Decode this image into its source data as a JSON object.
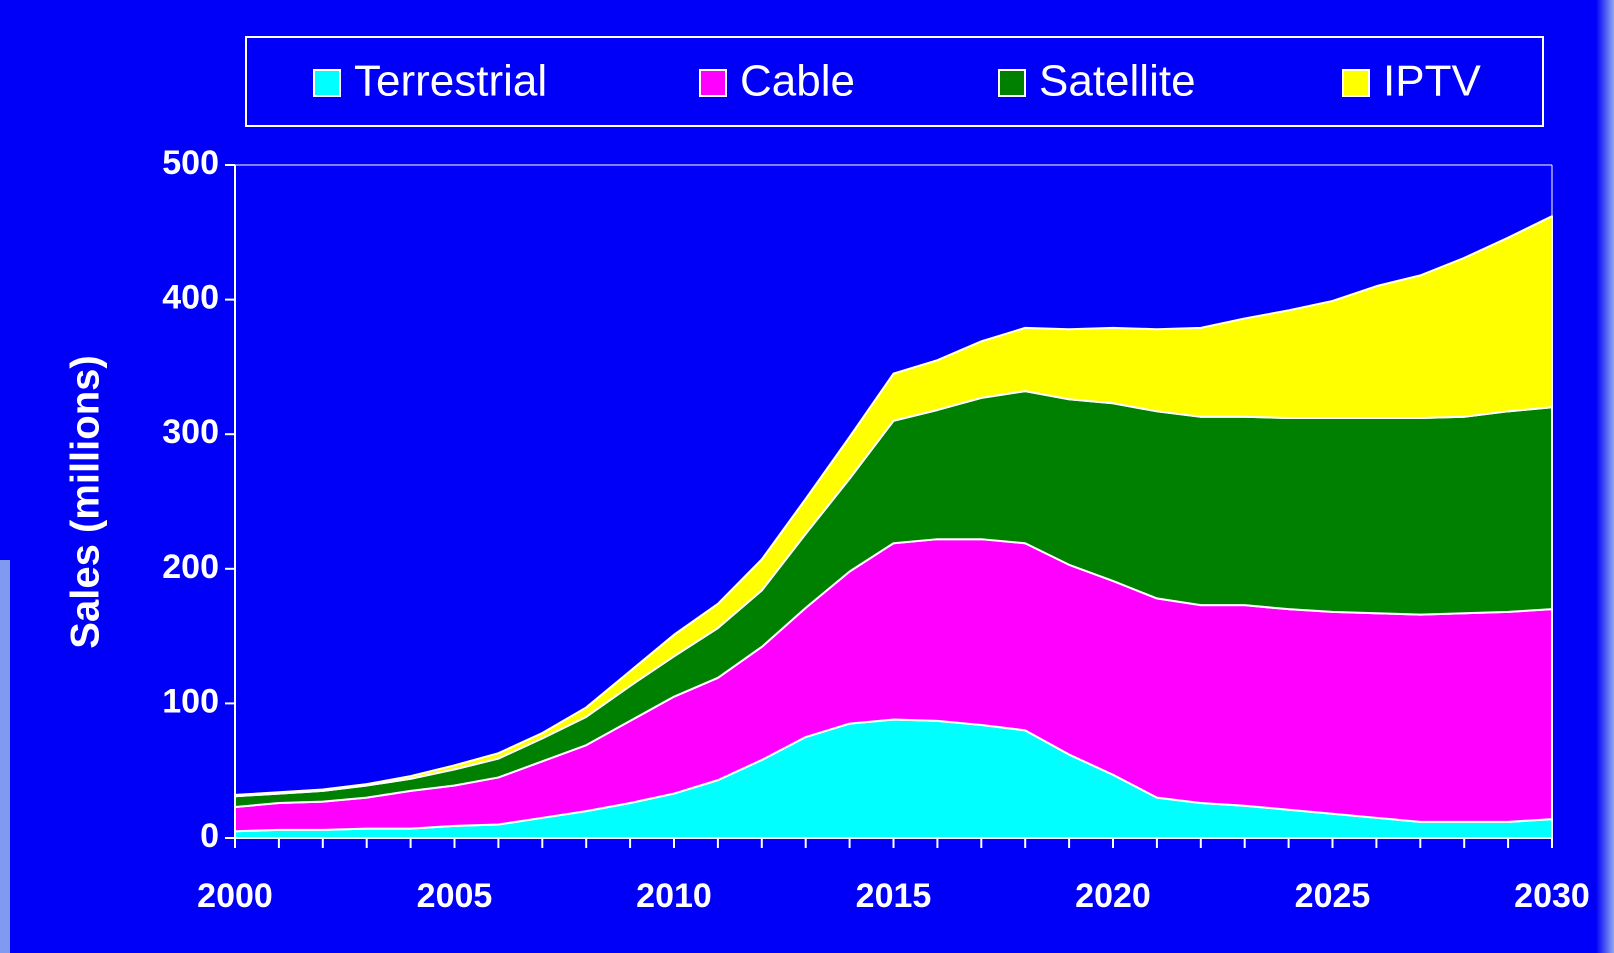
{
  "chart_data": {
    "type": "stacked-area",
    "y_label": "Sales (millions)",
    "x": [
      2000,
      2001,
      2002,
      2003,
      2004,
      2005,
      2006,
      2007,
      2008,
      2009,
      2010,
      2011,
      2012,
      2013,
      2014,
      2015,
      2016,
      2017,
      2018,
      2019,
      2020,
      2021,
      2022,
      2023,
      2024,
      2025,
      2026,
      2027,
      2028,
      2029,
      2030
    ],
    "series": [
      {
        "name": "Terrestrial",
        "color": "#00ffff",
        "values": [
          5,
          6,
          6,
          7,
          7,
          9,
          10,
          15,
          20,
          26,
          33,
          43,
          58,
          75,
          85,
          88,
          87,
          84,
          80,
          62,
          47,
          30,
          26,
          24,
          21,
          18,
          15,
          12,
          12,
          12,
          14
        ]
      },
      {
        "name": "Cable",
        "color": "#ff00ff",
        "values": [
          18,
          20,
          21,
          23,
          28,
          30,
          35,
          42,
          49,
          61,
          72,
          76,
          84,
          96,
          113,
          131,
          135,
          138,
          139,
          141,
          144,
          148,
          147,
          149,
          149,
          150,
          152,
          154,
          155,
          156,
          156
        ]
      },
      {
        "name": "Satellite",
        "color": "#008000",
        "values": [
          8,
          7,
          8,
          9,
          9,
          12,
          14,
          17,
          21,
          26,
          30,
          37,
          42,
          55,
          69,
          91,
          96,
          105,
          113,
          123,
          132,
          139,
          140,
          140,
          142,
          144,
          145,
          146,
          146,
          149,
          150
        ]
      },
      {
        "name": "IPTV",
        "color": "#ffff00",
        "values": [
          1,
          1,
          1,
          1,
          2,
          3,
          4,
          4,
          7,
          11,
          16,
          18,
          23,
          26,
          31,
          35,
          37,
          42,
          47,
          52,
          56,
          61,
          66,
          73,
          80,
          87,
          98,
          106,
          118,
          129,
          142
        ]
      }
    ],
    "xlim": [
      2000,
      2030
    ],
    "xticks": [
      2000,
      2005,
      2010,
      2015,
      2020,
      2025,
      2030
    ],
    "ylim": [
      0,
      500
    ],
    "yticks": [
      0,
      100,
      200,
      300,
      400,
      500
    ],
    "legend": "top"
  }
}
